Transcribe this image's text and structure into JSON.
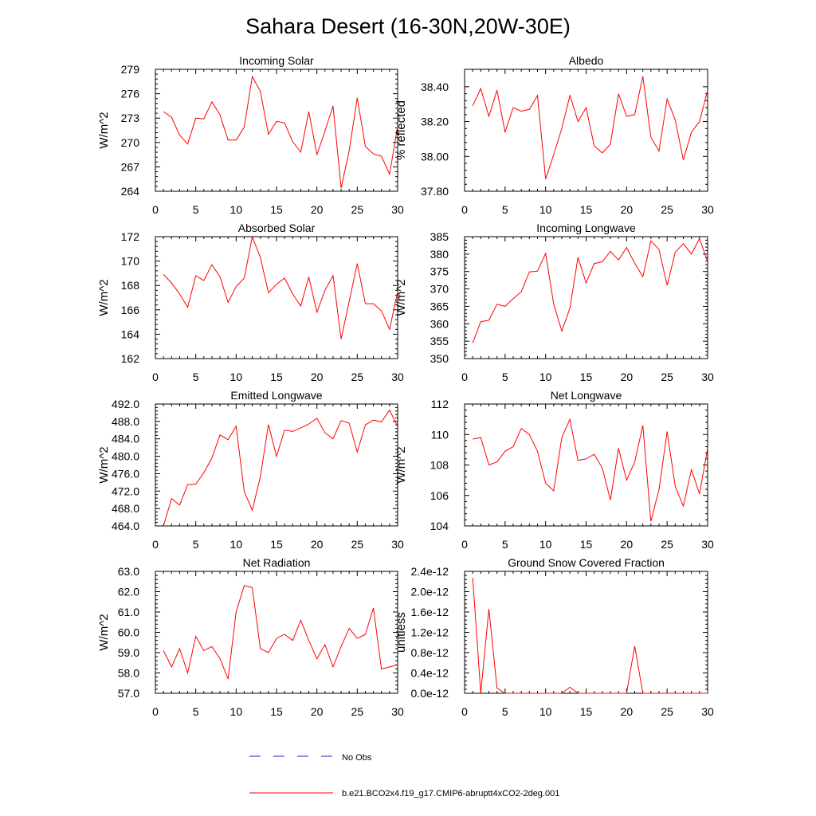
{
  "page": {
    "title": "Sahara Desert (16-30N,20W-30E)"
  },
  "legend": {
    "obs_label": "No Obs",
    "obs_color": "#2222cc",
    "model_label": "b.e21.BCO2x4.f19_g17.CMIP6-abruptt4xCO2-2deg.001",
    "model_color": "#ff0000"
  },
  "chart_data": [
    {
      "type": "line",
      "title": "Incoming Solar",
      "ylabel": "W/m^2",
      "xlim": [
        0,
        30
      ],
      "ylim": [
        264,
        279
      ],
      "xticks": [
        0,
        5,
        10,
        15,
        20,
        25,
        30
      ],
      "yticks": [
        264,
        267,
        270,
        273,
        276,
        279
      ],
      "ytick_labels": [
        "264",
        "267",
        "270",
        "273",
        "276",
        "279"
      ],
      "x": [
        1,
        2,
        3,
        4,
        5,
        6,
        7,
        8,
        9,
        10,
        11,
        12,
        13,
        14,
        15,
        16,
        17,
        18,
        19,
        20,
        21,
        22,
        23,
        24,
        25,
        26,
        27,
        28,
        29,
        30
      ],
      "values": [
        273.8,
        273.1,
        270.9,
        269.8,
        273.0,
        272.9,
        275.0,
        273.4,
        270.3,
        270.3,
        271.9,
        278.1,
        276.3,
        271.0,
        272.6,
        272.4,
        270.1,
        268.8,
        273.8,
        268.5,
        271.4,
        274.5,
        264.4,
        269.0,
        275.5,
        269.5,
        268.6,
        268.3,
        266.1,
        272.0
      ]
    },
    {
      "type": "line",
      "title": "Albedo",
      "ylabel": "% reflected",
      "xlim": [
        0,
        30
      ],
      "ylim": [
        37.8,
        38.5
      ],
      "xticks": [
        0,
        5,
        10,
        15,
        20,
        25,
        30
      ],
      "yticks": [
        37.8,
        38.0,
        38.2,
        38.4
      ],
      "ytick_labels": [
        "37.80",
        "38.00",
        "38.20",
        "38.40"
      ],
      "x": [
        1,
        2,
        3,
        4,
        5,
        6,
        7,
        8,
        9,
        10,
        11,
        12,
        13,
        14,
        15,
        16,
        17,
        18,
        19,
        20,
        21,
        22,
        23,
        24,
        25,
        26,
        27,
        28,
        29,
        30
      ],
      "values": [
        38.29,
        38.39,
        38.23,
        38.38,
        38.14,
        38.28,
        38.26,
        38.27,
        38.35,
        37.87,
        38.01,
        38.16,
        38.35,
        38.2,
        38.28,
        38.06,
        38.02,
        38.07,
        38.36,
        38.23,
        38.24,
        38.46,
        38.11,
        38.03,
        38.33,
        38.21,
        37.98,
        38.14,
        38.2,
        38.38
      ]
    },
    {
      "type": "line",
      "title": "Absorbed Solar",
      "ylabel": "W/m^2",
      "xlim": [
        0,
        30
      ],
      "ylim": [
        162,
        172
      ],
      "xticks": [
        0,
        5,
        10,
        15,
        20,
        25,
        30
      ],
      "yticks": [
        162,
        164,
        166,
        168,
        170,
        172
      ],
      "ytick_labels": [
        "162",
        "164",
        "166",
        "168",
        "170",
        "172"
      ],
      "x": [
        1,
        2,
        3,
        4,
        5,
        6,
        7,
        8,
        9,
        10,
        11,
        12,
        13,
        14,
        15,
        16,
        17,
        18,
        19,
        20,
        21,
        22,
        23,
        24,
        25,
        26,
        27,
        28,
        29,
        30
      ],
      "values": [
        168.9,
        168.2,
        167.3,
        166.2,
        168.8,
        168.4,
        169.7,
        168.7,
        166.6,
        167.9,
        168.6,
        172.0,
        170.3,
        167.4,
        168.1,
        168.6,
        167.3,
        166.3,
        168.7,
        165.8,
        167.6,
        168.8,
        163.6,
        166.7,
        169.8,
        166.5,
        166.5,
        165.9,
        164.4,
        167.5
      ]
    },
    {
      "type": "line",
      "title": "Incoming Longwave",
      "ylabel": "W/m^2",
      "xlim": [
        0,
        30
      ],
      "ylim": [
        350,
        385
      ],
      "xticks": [
        0,
        5,
        10,
        15,
        20,
        25,
        30
      ],
      "yticks": [
        350,
        355,
        360,
        365,
        370,
        375,
        380,
        385
      ],
      "ytick_labels": [
        "350",
        "355",
        "360",
        "365",
        "370",
        "375",
        "380",
        "385"
      ],
      "x": [
        1,
        2,
        3,
        4,
        5,
        6,
        7,
        8,
        9,
        10,
        11,
        12,
        13,
        14,
        15,
        16,
        17,
        18,
        19,
        20,
        21,
        22,
        23,
        24,
        25,
        26,
        27,
        28,
        29,
        30
      ],
      "values": [
        354.5,
        360.6,
        361.0,
        365.6,
        365.0,
        367.2,
        369.2,
        374.9,
        375.1,
        380.2,
        365.7,
        357.9,
        364.5,
        379.1,
        371.7,
        377.3,
        377.8,
        380.8,
        378.3,
        381.9,
        377.4,
        373.5,
        383.8,
        381.3,
        371.0,
        380.5,
        383.0,
        380.0,
        384.5,
        377.8
      ]
    },
    {
      "type": "line",
      "title": "Emitted Longwave",
      "ylabel": "W/m^2",
      "xlim": [
        0,
        30
      ],
      "ylim": [
        464,
        492
      ],
      "xticks": [
        0,
        5,
        10,
        15,
        20,
        25,
        30
      ],
      "yticks": [
        464,
        468,
        472,
        476,
        480,
        484,
        488,
        492
      ],
      "ytick_labels": [
        "464.0",
        "468.0",
        "472.0",
        "476.0",
        "480.0",
        "484.0",
        "488.0",
        "492.0"
      ],
      "x": [
        1,
        2,
        3,
        4,
        5,
        6,
        7,
        8,
        9,
        10,
        11,
        12,
        13,
        14,
        15,
        16,
        17,
        18,
        19,
        20,
        21,
        22,
        23,
        24,
        25,
        26,
        27,
        28,
        29,
        30
      ],
      "values": [
        464.0,
        470.3,
        468.8,
        473.5,
        473.6,
        476.2,
        479.6,
        484.9,
        483.8,
        486.9,
        471.9,
        467.6,
        475.3,
        487.3,
        480.0,
        486.0,
        485.7,
        486.5,
        487.4,
        488.7,
        485.4,
        484.0,
        488.2,
        487.6,
        481.0,
        487.2,
        488.3,
        487.9,
        490.6,
        486.8
      ]
    },
    {
      "type": "line",
      "title": "Net Longwave",
      "ylabel": "W/m^2",
      "xlim": [
        0,
        30
      ],
      "ylim": [
        104,
        112
      ],
      "xticks": [
        0,
        5,
        10,
        15,
        20,
        25,
        30
      ],
      "yticks": [
        104,
        106,
        108,
        110,
        112
      ],
      "ytick_labels": [
        "104",
        "106",
        "108",
        "110",
        "112"
      ],
      "x": [
        1,
        2,
        3,
        4,
        5,
        6,
        7,
        8,
        9,
        10,
        11,
        12,
        13,
        14,
        15,
        16,
        17,
        18,
        19,
        20,
        21,
        22,
        23,
        24,
        25,
        26,
        27,
        28,
        29,
        30
      ],
      "values": [
        109.7,
        109.8,
        108.0,
        108.2,
        108.9,
        109.2,
        110.4,
        110.0,
        108.9,
        106.8,
        106.3,
        109.8,
        111.0,
        108.3,
        108.4,
        108.7,
        107.8,
        105.7,
        109.1,
        107.0,
        108.2,
        110.6,
        104.3,
        106.4,
        110.2,
        106.6,
        105.3,
        107.7,
        106.1,
        109.1
      ]
    },
    {
      "type": "line",
      "title": "Net Radiation",
      "ylabel": "W/m^2",
      "xlim": [
        0,
        30
      ],
      "ylim": [
        57,
        63
      ],
      "xticks": [
        0,
        5,
        10,
        15,
        20,
        25,
        30
      ],
      "yticks": [
        57,
        58,
        59,
        60,
        61,
        62,
        63
      ],
      "ytick_labels": [
        "57.0",
        "58.0",
        "59.0",
        "60.0",
        "61.0",
        "62.0",
        "63.0"
      ],
      "x": [
        1,
        2,
        3,
        4,
        5,
        6,
        7,
        8,
        9,
        10,
        11,
        12,
        13,
        14,
        15,
        16,
        17,
        18,
        19,
        20,
        21,
        22,
        23,
        24,
        25,
        26,
        27,
        28,
        29,
        30
      ],
      "values": [
        59.1,
        58.3,
        59.2,
        58.0,
        59.8,
        59.1,
        59.3,
        58.7,
        57.7,
        61.0,
        62.3,
        62.2,
        59.2,
        59.0,
        59.7,
        59.9,
        59.6,
        60.6,
        59.6,
        58.7,
        59.4,
        58.3,
        59.3,
        60.2,
        59.7,
        59.9,
        61.2,
        58.2,
        58.3,
        58.4
      ]
    },
    {
      "type": "line",
      "title": "Ground Snow Covered Fraction",
      "ylabel": "unitless",
      "xlim": [
        0,
        30
      ],
      "ylim": [
        0,
        2.4
      ],
      "y_unit_exponent": "e-12",
      "xticks": [
        0,
        5,
        10,
        15,
        20,
        25,
        30
      ],
      "yticks": [
        0,
        0.4,
        0.8,
        1.2,
        1.6,
        2.0,
        2.4
      ],
      "ytick_labels": [
        "0.0e-12",
        "0.4e-12",
        "0.8e-12",
        "1.2e-12",
        "1.6e-12",
        "2.0e-12",
        "2.4e-12"
      ],
      "x": [
        1,
        2,
        3,
        4,
        5,
        6,
        7,
        8,
        9,
        10,
        11,
        12,
        13,
        14,
        15,
        16,
        17,
        18,
        19,
        20,
        21,
        22,
        23,
        24,
        25,
        26,
        27,
        28,
        29,
        30
      ],
      "values": [
        2.27,
        0.0,
        1.66,
        0.1,
        0.0,
        0.0,
        0.0,
        0.0,
        0.0,
        0.0,
        0.0,
        0.0,
        0.12,
        0.0,
        0.0,
        0.0,
        0.0,
        0.0,
        0.0,
        0.0,
        0.93,
        0.0,
        0.0,
        0.0,
        0.0,
        0.0,
        0.0,
        0.0,
        0.0,
        0.0
      ]
    }
  ]
}
